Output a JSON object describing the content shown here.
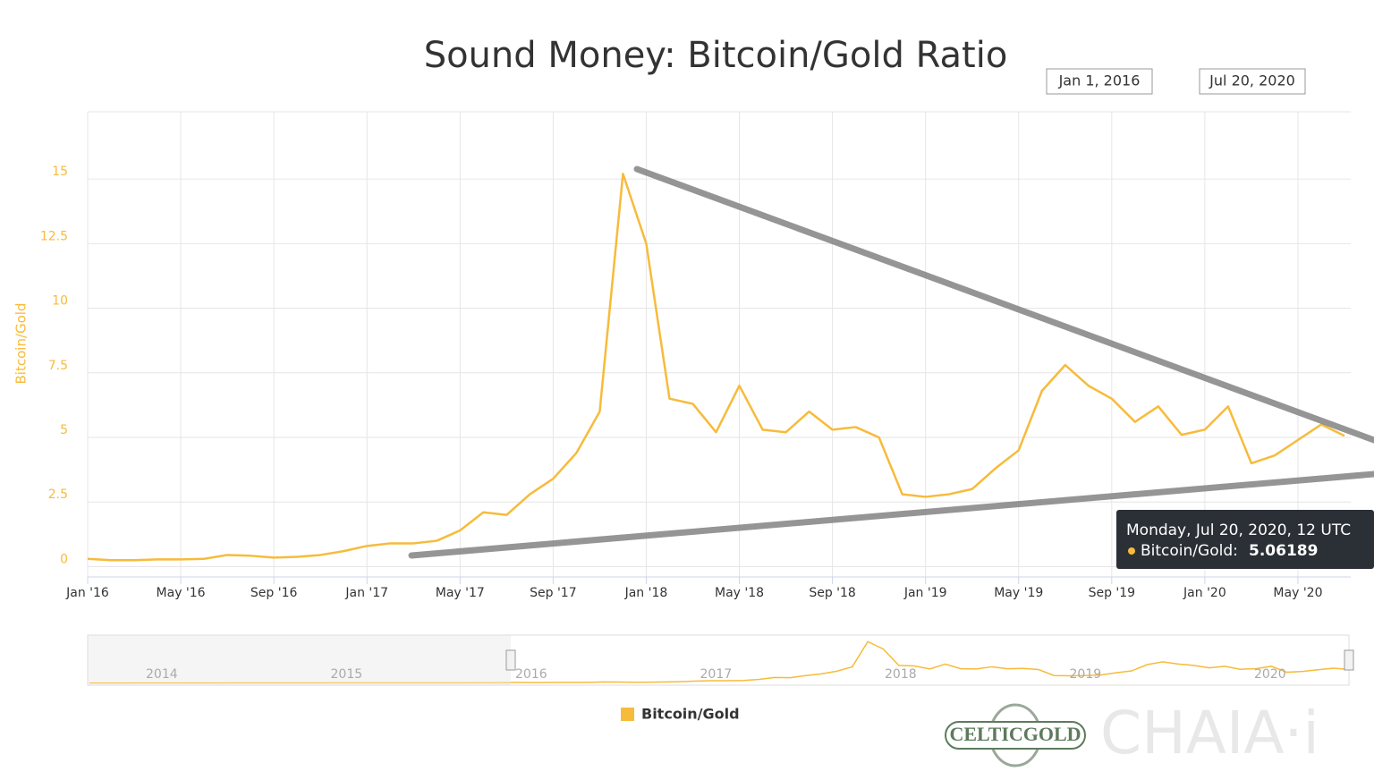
{
  "chart_data": {
    "type": "line",
    "title": "Sound Money: Bitcoin/Gold Ratio",
    "y_label": "Bitcoin/Gold",
    "range_selector": {
      "from": "Jan 1, 2016",
      "to": "Jul 20, 2020"
    },
    "x": [
      "2016-01",
      "2016-02",
      "2016-03",
      "2016-04",
      "2016-05",
      "2016-06",
      "2016-07",
      "2016-08",
      "2016-09",
      "2016-10",
      "2016-11",
      "2016-12",
      "2017-01",
      "2017-02",
      "2017-03",
      "2017-04",
      "2017-05",
      "2017-06",
      "2017-07",
      "2017-08",
      "2017-09",
      "2017-10",
      "2017-11",
      "2017-12",
      "2018-01",
      "2018-02",
      "2018-03",
      "2018-04",
      "2018-05",
      "2018-06",
      "2018-07",
      "2018-08",
      "2018-09",
      "2018-10",
      "2018-11",
      "2018-12",
      "2019-01",
      "2019-02",
      "2019-03",
      "2019-04",
      "2019-05",
      "2019-06",
      "2019-07",
      "2019-08",
      "2019-09",
      "2019-10",
      "2019-11",
      "2019-12",
      "2020-01",
      "2020-02",
      "2020-03",
      "2020-04",
      "2020-05",
      "2020-06",
      "2020-07"
    ],
    "series": [
      {
        "name": "Bitcoin/Gold",
        "color": "#f7bb3b",
        "values": [
          0.3,
          0.25,
          0.25,
          0.28,
          0.28,
          0.3,
          0.45,
          0.42,
          0.35,
          0.38,
          0.45,
          0.6,
          0.8,
          0.9,
          0.9,
          1.0,
          1.4,
          2.1,
          2.0,
          2.8,
          3.4,
          4.4,
          6.0,
          15.2,
          12.5,
          6.5,
          6.3,
          5.2,
          7.0,
          5.3,
          5.2,
          6.0,
          5.3,
          5.4,
          5.0,
          2.8,
          2.7,
          2.8,
          3.0,
          3.8,
          4.5,
          6.8,
          7.8,
          7.0,
          6.5,
          5.6,
          6.2,
          5.1,
          5.3,
          6.2,
          4.0,
          4.3,
          4.9,
          5.5,
          5.06
        ]
      }
    ],
    "xlim": [
      "2016-01",
      "2020-07"
    ],
    "xticks": [
      {
        "value": "2016-01",
        "label": "Jan '16"
      },
      {
        "value": "2016-05",
        "label": "May '16"
      },
      {
        "value": "2016-09",
        "label": "Sep '16"
      },
      {
        "value": "2017-01",
        "label": "Jan '17"
      },
      {
        "value": "2017-05",
        "label": "May '17"
      },
      {
        "value": "2017-09",
        "label": "Sep '17"
      },
      {
        "value": "2018-01",
        "label": "Jan '18"
      },
      {
        "value": "2018-05",
        "label": "May '18"
      },
      {
        "value": "2018-09",
        "label": "Sep '18"
      },
      {
        "value": "2019-01",
        "label": "Jan '19"
      },
      {
        "value": "2019-05",
        "label": "May '19"
      },
      {
        "value": "2019-09",
        "label": "Sep '19"
      },
      {
        "value": "2020-01",
        "label": "Jan '20"
      },
      {
        "value": "2020-05",
        "label": "May '20"
      }
    ],
    "ylim": [
      -0.4,
      17.6
    ],
    "yticks": [
      0,
      2.5,
      5,
      7.5,
      10,
      12.5,
      15
    ],
    "grid": true,
    "tooltip": {
      "header": "Monday, Jul 20, 2020, 12 UTC",
      "label": "Bitcoin/Gold:",
      "value": 5.06189
    },
    "navigator_labels": [
      2014,
      2015,
      2016,
      2017,
      2018,
      2019,
      2020
    ],
    "logos": [
      "CELTICGOLD",
      "CHAIA·i"
    ]
  }
}
